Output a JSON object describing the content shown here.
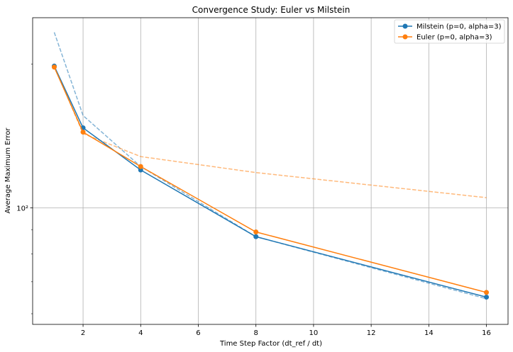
{
  "chart_data": {
    "type": "line",
    "title": "Convergence Study: Euler vs Milstein",
    "xlabel": "Time Step Factor (dt_ref / dt)",
    "ylabel": "Average Maximum Error",
    "y_scale": "log",
    "xlim": [
      0.25,
      16.75
    ],
    "ylim": [
      57,
      250
    ],
    "x": [
      1,
      2,
      4,
      8,
      16
    ],
    "x_ticks": [
      2,
      4,
      6,
      8,
      10,
      12,
      14,
      16
    ],
    "x_tick_labels": [
      "2",
      "4",
      "6",
      "8",
      "10",
      "12",
      "14",
      "16"
    ],
    "y_ticks": [
      100
    ],
    "y_tick_labels": [
      "10²"
    ],
    "grid": true,
    "legend_location": "top-right",
    "series": [
      {
        "name": "Milstein (p=0, alpha=3)",
        "color": "#1f77b4",
        "values": [
          198,
          147,
          120,
          87,
          65
        ],
        "marker": "circle",
        "reference_line": {
          "color": "#1f77b4",
          "values": [
            233,
            156,
            122,
            87,
            64.5
          ]
        }
      },
      {
        "name": "Euler (p=0, alpha=3)",
        "color": "#ff7f0e",
        "values": [
          197,
          144,
          122,
          89,
          66.5
        ],
        "marker": "circle",
        "reference_line": {
          "color": "#ff7f0e",
          "values": [
            198,
            143,
            128,
            118.5,
            105
          ]
        }
      }
    ]
  }
}
